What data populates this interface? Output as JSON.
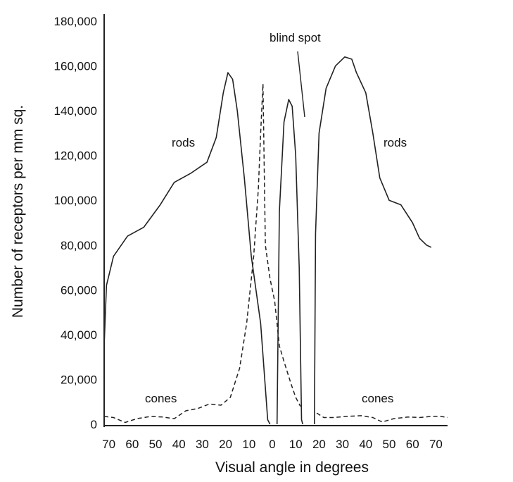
{
  "chart_data": {
    "type": "line",
    "title": "",
    "xlabel": "Visual angle in degrees",
    "ylabel": "Number of receptors per mm sq.",
    "ylim": [
      0,
      180000
    ],
    "xlim": [
      -72,
      75
    ],
    "grid": false,
    "legend": "none",
    "y_ticks": [
      {
        "value": 0,
        "label": "0"
      },
      {
        "value": 20000,
        "label": "20,000"
      },
      {
        "value": 40000,
        "label": "40,000"
      },
      {
        "value": 60000,
        "label": "60,000"
      },
      {
        "value": 80000,
        "label": "80,000"
      },
      {
        "value": 100000,
        "label": "100,000"
      },
      {
        "value": 120000,
        "label": "120,000"
      },
      {
        "value": 140000,
        "label": "140,000"
      },
      {
        "value": 160000,
        "label": "160,000"
      },
      {
        "value": 180000,
        "label": "180,000"
      }
    ],
    "x_ticks": [
      {
        "value": -70,
        "label": "70"
      },
      {
        "value": -60,
        "label": "60"
      },
      {
        "value": -50,
        "label": "50"
      },
      {
        "value": -40,
        "label": "40"
      },
      {
        "value": -30,
        "label": "30"
      },
      {
        "value": -20,
        "label": "20"
      },
      {
        "value": -10,
        "label": "10"
      },
      {
        "value": 0,
        "label": "0"
      },
      {
        "value": 10,
        "label": "10"
      },
      {
        "value": 20,
        "label": "20"
      },
      {
        "value": 30,
        "label": "30"
      },
      {
        "value": 40,
        "label": "40"
      },
      {
        "value": 50,
        "label": "50"
      },
      {
        "value": 60,
        "label": "60"
      },
      {
        "value": 70,
        "label": "70"
      }
    ],
    "series": [
      {
        "style": "solid",
        "segments": [
          [
            [
              -72,
              35000
            ],
            [
              -71,
              62000
            ],
            [
              -68,
              75000
            ],
            [
              -62,
              84000
            ],
            [
              -55,
              88000
            ],
            [
              -48,
              98000
            ],
            [
              -42,
              108000
            ],
            [
              -35,
              112000
            ],
            [
              -28,
              117000
            ],
            [
              -24,
              128000
            ],
            [
              -21,
              148000
            ],
            [
              -19,
              157000
            ],
            [
              -17,
              154000
            ],
            [
              -15,
              140000
            ],
            [
              -12,
              110000
            ],
            [
              -9,
              75000
            ],
            [
              -5,
              45000
            ],
            [
              -2,
              2000
            ],
            [
              -1,
              0
            ]
          ],
          [
            [
              2,
              0
            ],
            [
              3,
              95000
            ],
            [
              5,
              135000
            ],
            [
              7,
              145000
            ],
            [
              8.5,
              142000
            ],
            [
              10,
              120000
            ],
            [
              11.5,
              70000
            ],
            [
              12.5,
              2000
            ],
            [
              13,
              0
            ]
          ],
          [
            [
              18,
              0
            ],
            [
              18.5,
              85000
            ],
            [
              20,
              130000
            ],
            [
              23,
              150000
            ],
            [
              27,
              160000
            ],
            [
              31,
              164000
            ],
            [
              34,
              163000
            ],
            [
              36,
              157000
            ],
            [
              40,
              148000
            ],
            [
              43,
              130000
            ],
            [
              46,
              110000
            ],
            [
              50,
              100000
            ],
            [
              55,
              98000
            ],
            [
              60,
              90000
            ],
            [
              63,
              83000
            ],
            [
              66,
              80000
            ],
            [
              68,
              79000
            ]
          ]
        ]
      },
      {
        "style": "dashed",
        "segments": [
          [
            [
              -72,
              3500
            ],
            [
              -68,
              3000
            ],
            [
              -63,
              800
            ],
            [
              -58,
              2500
            ],
            [
              -52,
              3500
            ],
            [
              -47,
              3200
            ],
            [
              -42,
              2500
            ],
            [
              -37,
              6000
            ],
            [
              -32,
              7000
            ],
            [
              -27,
              9000
            ],
            [
              -22,
              8500
            ],
            [
              -18,
              12000
            ],
            [
              -14,
              25000
            ],
            [
              -11,
              45000
            ],
            [
              -8,
              75000
            ],
            [
              -6,
              105000
            ],
            [
              -5,
              130000
            ],
            [
              -4,
              152000
            ],
            [
              -3,
              80000
            ],
            [
              -1,
              65000
            ],
            [
              1,
              55000
            ],
            [
              3,
              35000
            ],
            [
              5,
              28000
            ],
            [
              8,
              18000
            ],
            [
              10,
              12000
            ],
            [
              12,
              8000
            ]
          ],
          [
            [
              19,
              5000
            ],
            [
              22,
              3000
            ],
            [
              26,
              3000
            ],
            [
              32,
              3500
            ],
            [
              38,
              3800
            ],
            [
              43,
              3000
            ],
            [
              47,
              1000
            ],
            [
              52,
              2500
            ],
            [
              58,
              3200
            ],
            [
              63,
              3000
            ],
            [
              68,
              3500
            ],
            [
              72,
              3500
            ],
            [
              75,
              3000
            ]
          ]
        ]
      }
    ],
    "annotations": {
      "rods_left": "rods",
      "rods_right": "rods",
      "cones_left": "cones",
      "cones_right": "cones",
      "blind_spot": "blind spot"
    }
  }
}
